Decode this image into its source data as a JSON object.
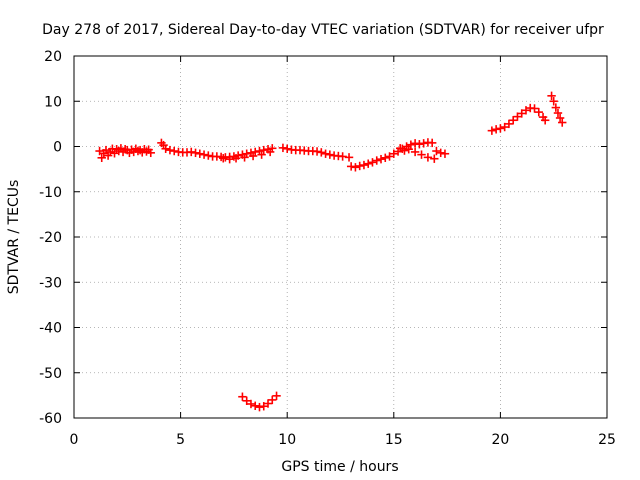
{
  "chart_data": {
    "type": "scatter",
    "title": "Day 278 of 2017, Sidereal Day-to-day VTEC variation (SDTVAR) for receiver ufpr",
    "xlabel": "GPS time / hours",
    "ylabel": "SDTVAR / TECUs",
    "xlim": [
      0,
      25
    ],
    "ylim": [
      -60,
      20
    ],
    "xticks": [
      "0",
      "5",
      "10",
      "15",
      "20",
      "25"
    ],
    "yticks": [
      "20",
      "10",
      "0",
      "-10",
      "-20",
      "-30",
      "-40",
      "-50",
      "-60"
    ],
    "grid": true,
    "marker": "plus",
    "series": [
      {
        "name": "SDTVAR",
        "color": "#ff0000",
        "points": [
          [
            1.2,
            -1.0
          ],
          [
            1.3,
            -2.5
          ],
          [
            1.4,
            -1.5
          ],
          [
            1.5,
            -0.8
          ],
          [
            1.6,
            -2.0
          ],
          [
            1.7,
            -1.2
          ],
          [
            1.8,
            -0.5
          ],
          [
            1.9,
            -1.5
          ],
          [
            2.0,
            -0.6
          ],
          [
            2.1,
            -1.0
          ],
          [
            2.2,
            -0.4
          ],
          [
            2.3,
            -1.2
          ],
          [
            2.4,
            -0.6
          ],
          [
            2.5,
            -0.8
          ],
          [
            2.6,
            -1.4
          ],
          [
            2.7,
            -0.7
          ],
          [
            2.8,
            -1.2
          ],
          [
            2.9,
            -0.5
          ],
          [
            3.0,
            -1.0
          ],
          [
            3.1,
            -0.8
          ],
          [
            3.2,
            -1.3
          ],
          [
            3.3,
            -0.6
          ],
          [
            3.4,
            -1.1
          ],
          [
            3.5,
            -0.7
          ],
          [
            3.6,
            -1.4
          ],
          [
            4.1,
            0.8
          ],
          [
            4.2,
            0.3
          ],
          [
            4.3,
            -0.5
          ],
          [
            4.5,
            -0.8
          ],
          [
            4.7,
            -1.0
          ],
          [
            4.9,
            -1.2
          ],
          [
            5.1,
            -1.3
          ],
          [
            5.3,
            -1.3
          ],
          [
            5.5,
            -1.2
          ],
          [
            5.7,
            -1.4
          ],
          [
            5.9,
            -1.6
          ],
          [
            6.1,
            -1.8
          ],
          [
            6.3,
            -2.0
          ],
          [
            6.5,
            -2.2
          ],
          [
            6.7,
            -2.2
          ],
          [
            6.9,
            -2.3
          ],
          [
            7.1,
            -2.4
          ],
          [
            7.3,
            -2.3
          ],
          [
            7.5,
            -2.2
          ],
          [
            7.7,
            -2.0
          ],
          [
            7.9,
            -1.8
          ],
          [
            8.1,
            -1.6
          ],
          [
            8.3,
            -1.4
          ],
          [
            8.5,
            -1.2
          ],
          [
            8.7,
            -1.0
          ],
          [
            8.9,
            -0.8
          ],
          [
            9.1,
            -0.6
          ],
          [
            9.3,
            -0.4
          ],
          [
            7.0,
            -2.6
          ],
          [
            7.3,
            -2.8
          ],
          [
            7.6,
            -2.6
          ],
          [
            8.0,
            -2.4
          ],
          [
            8.4,
            -2.1
          ],
          [
            8.8,
            -1.8
          ],
          [
            9.2,
            -1.2
          ],
          [
            9.8,
            -0.3
          ],
          [
            10.0,
            -0.5
          ],
          [
            10.2,
            -0.7
          ],
          [
            10.4,
            -0.8
          ],
          [
            10.6,
            -0.8
          ],
          [
            10.8,
            -0.9
          ],
          [
            11.0,
            -1.0
          ],
          [
            11.2,
            -1.0
          ],
          [
            11.4,
            -1.1
          ],
          [
            11.6,
            -1.3
          ],
          [
            11.8,
            -1.6
          ],
          [
            12.0,
            -1.8
          ],
          [
            12.2,
            -2.0
          ],
          [
            12.4,
            -2.1
          ],
          [
            12.6,
            -2.2
          ],
          [
            12.9,
            -2.4
          ],
          [
            13.0,
            -4.4
          ],
          [
            13.2,
            -4.6
          ],
          [
            13.4,
            -4.3
          ],
          [
            13.6,
            -4.1
          ],
          [
            13.8,
            -3.8
          ],
          [
            14.0,
            -3.5
          ],
          [
            14.2,
            -3.1
          ],
          [
            14.4,
            -2.8
          ],
          [
            14.6,
            -2.5
          ],
          [
            14.8,
            -2.2
          ],
          [
            15.0,
            -1.6
          ],
          [
            15.2,
            -1.1
          ],
          [
            15.4,
            -0.5
          ],
          [
            15.6,
            0.0
          ],
          [
            15.8,
            0.4
          ],
          [
            16.0,
            0.7
          ],
          [
            16.2,
            0.5
          ],
          [
            16.4,
            0.7
          ],
          [
            16.6,
            0.9
          ],
          [
            16.8,
            0.8
          ],
          [
            15.3,
            -0.4
          ],
          [
            15.5,
            -0.9
          ],
          [
            15.7,
            -0.6
          ],
          [
            16.0,
            -1.2
          ],
          [
            16.3,
            -1.8
          ],
          [
            16.6,
            -2.4
          ],
          [
            16.9,
            -2.7
          ],
          [
            17.0,
            -1.0
          ],
          [
            17.2,
            -1.4
          ],
          [
            17.4,
            -1.6
          ],
          [
            7.9,
            -55.3
          ],
          [
            8.1,
            -56.2
          ],
          [
            8.3,
            -56.9
          ],
          [
            8.5,
            -57.3
          ],
          [
            8.7,
            -57.6
          ],
          [
            8.9,
            -57.4
          ],
          [
            9.1,
            -56.8
          ],
          [
            9.3,
            -56.0
          ],
          [
            9.5,
            -55.1
          ],
          [
            19.6,
            3.5
          ],
          [
            19.8,
            3.8
          ],
          [
            20.0,
            4.0
          ],
          [
            20.2,
            4.3
          ],
          [
            20.4,
            5.0
          ],
          [
            20.6,
            5.8
          ],
          [
            20.8,
            6.6
          ],
          [
            21.0,
            7.3
          ],
          [
            21.2,
            8.0
          ],
          [
            21.4,
            8.5
          ],
          [
            21.6,
            8.4
          ],
          [
            21.8,
            7.6
          ],
          [
            22.0,
            6.5
          ],
          [
            22.1,
            5.8
          ],
          [
            22.4,
            11.2
          ],
          [
            22.5,
            10.0
          ],
          [
            22.6,
            8.6
          ],
          [
            22.7,
            7.4
          ],
          [
            22.8,
            6.3
          ],
          [
            22.9,
            5.3
          ]
        ]
      }
    ]
  }
}
